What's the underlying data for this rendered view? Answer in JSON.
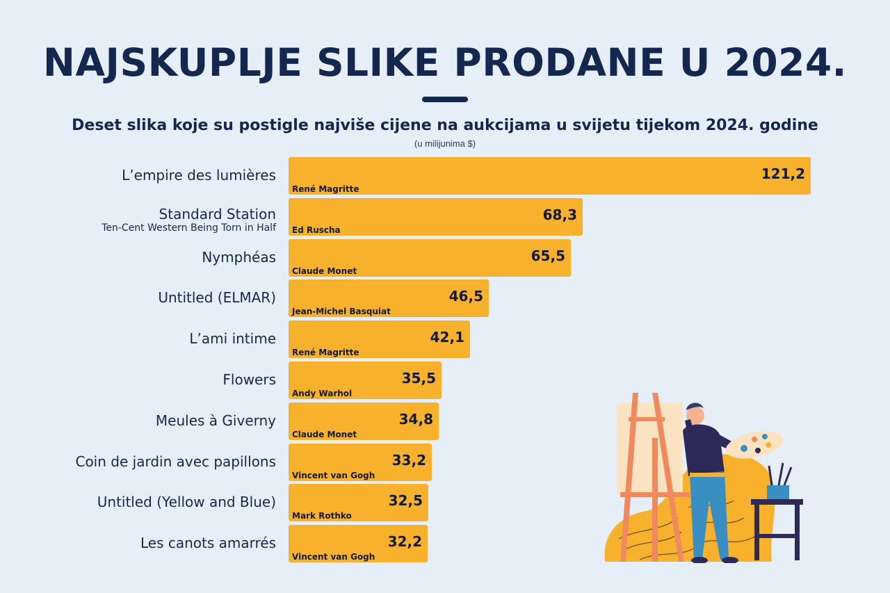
{
  "chart_data": {
    "type": "bar",
    "orientation": "horizontal",
    "title": "NAJSKUPLJE SLIKE PRODANE U 2024.",
    "subtitle": "Deset slika koje su postigle najviše cijene na aukcijama u svijetu tijekom 2024. godine",
    "unit": "(u milijunima $)",
    "grid": false,
    "bar_color": "#f8b12c",
    "categories": [
      {
        "title": "L’empire des lumières",
        "subtitle": "",
        "artist": "René Magritte"
      },
      {
        "title": "Standard Station",
        "subtitle": "Ten-Cent Western Being Torn in Half",
        "artist": "Ed Ruscha"
      },
      {
        "title": "Nymphéas",
        "subtitle": "",
        "artist": "Claude Monet"
      },
      {
        "title": "Untitled (ELMAR)",
        "subtitle": "",
        "artist": "Jean-Michel Basquiat"
      },
      {
        "title": "L’ami intime",
        "subtitle": "",
        "artist": "René Magritte"
      },
      {
        "title": "Flowers",
        "subtitle": "",
        "artist": "Andy Warhol"
      },
      {
        "title": "Meules à Giverny",
        "subtitle": "",
        "artist": "Claude Monet"
      },
      {
        "title": "Coin de jardin avec papillons",
        "subtitle": "",
        "artist": "Vincent van Gogh"
      },
      {
        "title": "Untitled (Yellow and Blue)",
        "subtitle": "",
        "artist": "Mark Rothko"
      },
      {
        "title": "Les canots amarrés",
        "subtitle": "",
        "artist": "Vincent van Gogh"
      }
    ],
    "values": [
      121.2,
      68.3,
      65.5,
      46.5,
      42.1,
      35.5,
      34.8,
      33.2,
      32.5,
      32.2
    ],
    "value_labels": [
      "121,2",
      "68,3",
      "65,5",
      "46,5",
      "42,1",
      "35,5",
      "34,8",
      "33,2",
      "32,5",
      "32,2"
    ],
    "xlim": [
      0,
      121.2
    ]
  },
  "colors": {
    "background": "#e6eef8",
    "title": "#14284f",
    "bar": "#f8b12c"
  },
  "illustration": {
    "icon": "painter-at-easel-illustration"
  }
}
